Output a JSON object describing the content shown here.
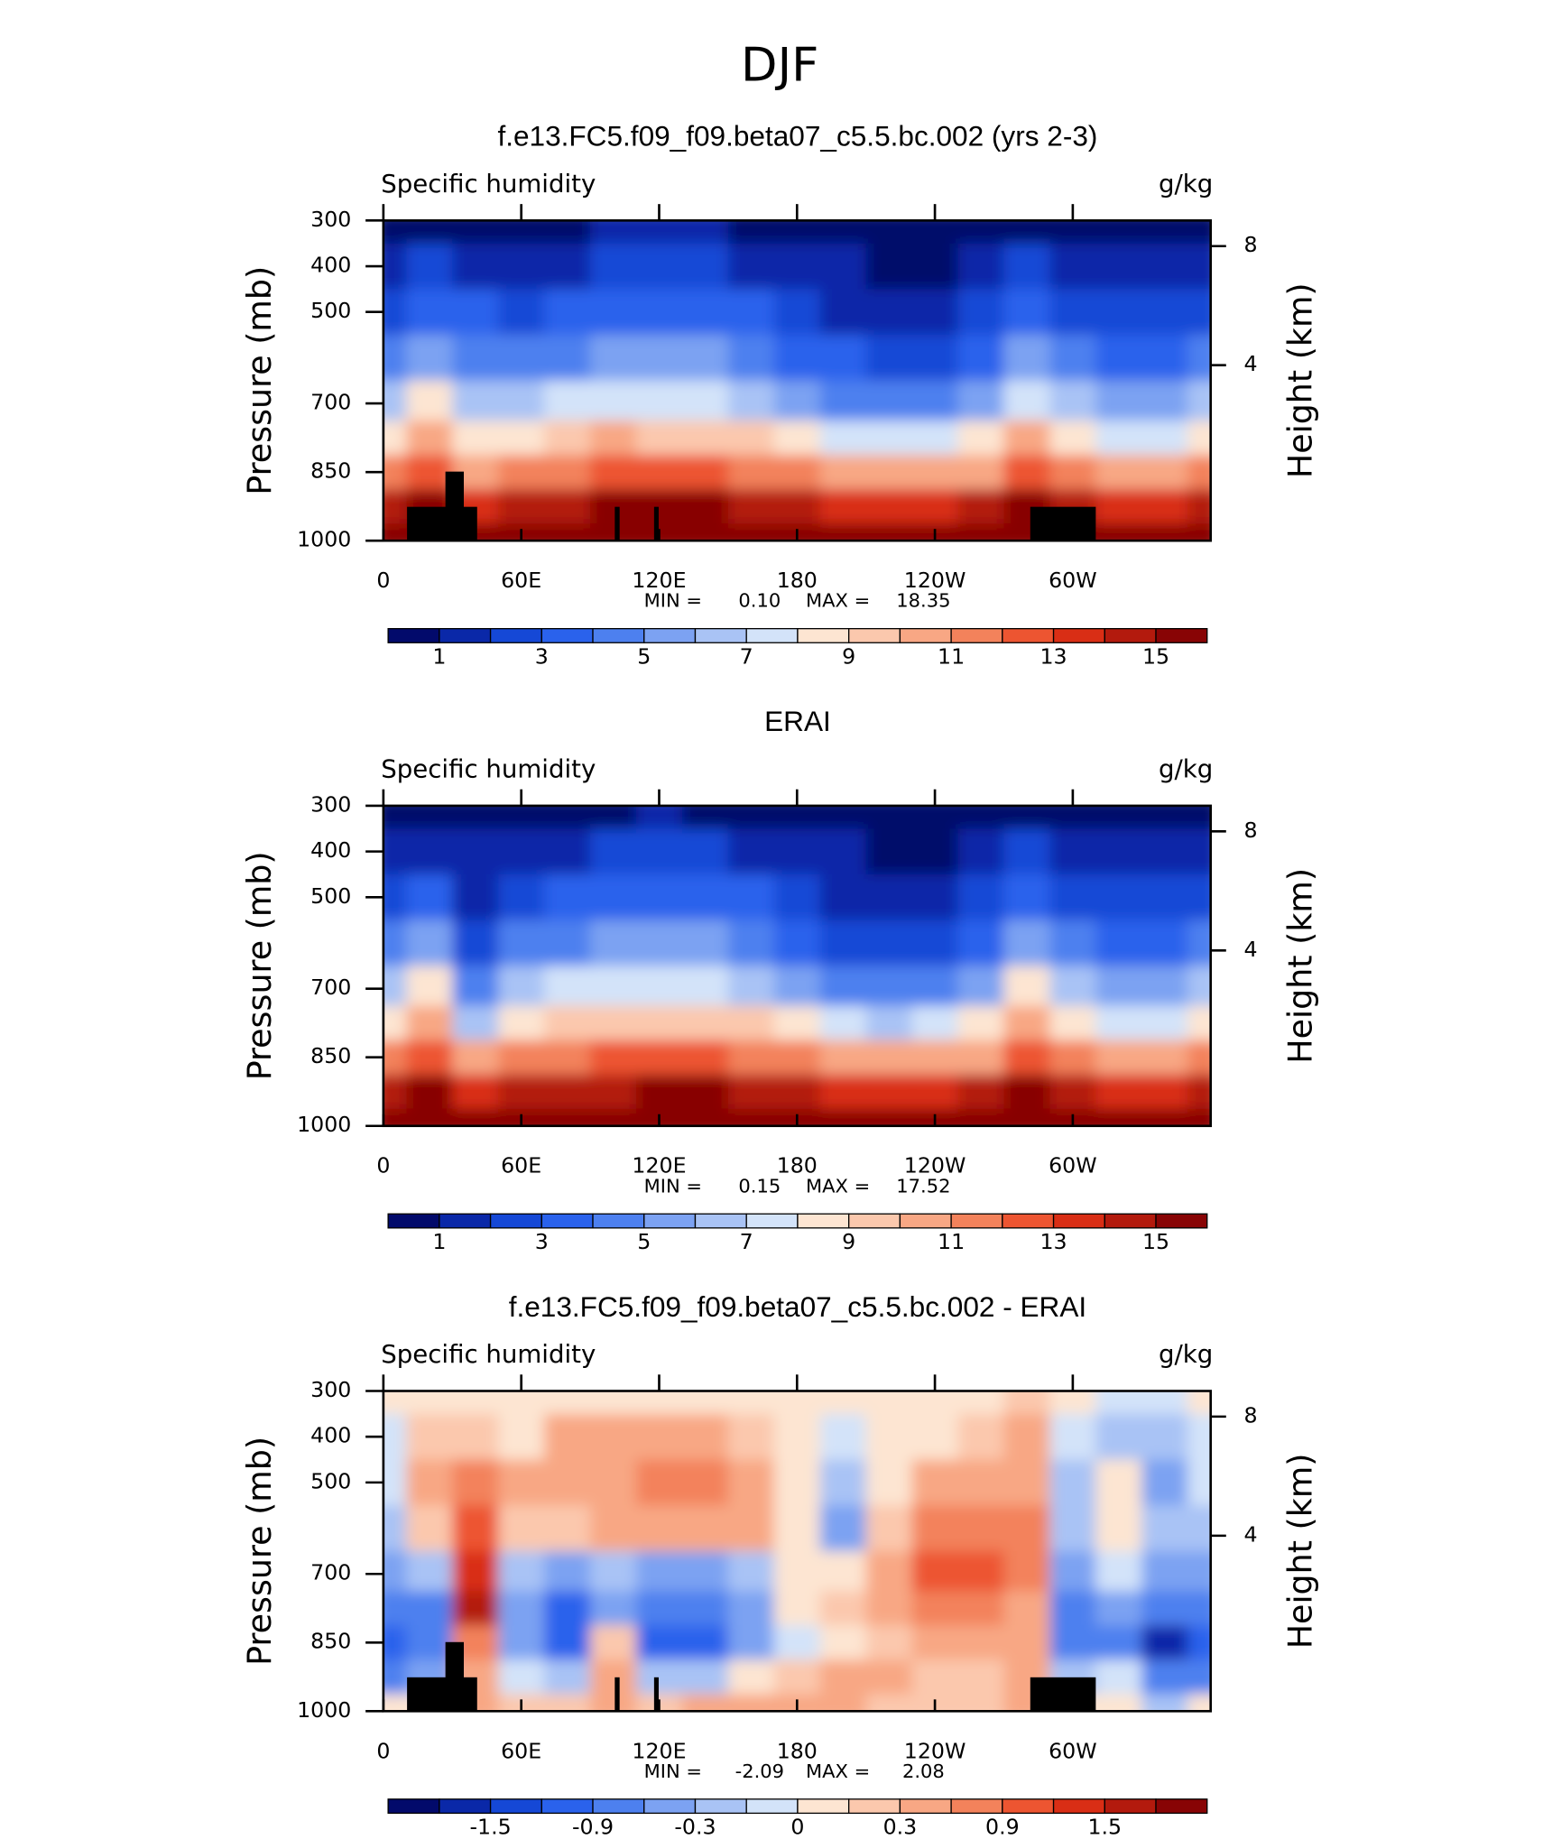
{
  "figure_title": "DJF",
  "chart_data": [
    {
      "type": "contour",
      "title": "f.e13.FC5.f09_f09.beta07_c5.5.bc.002 (yrs 2-3)",
      "subtitle": "Specific humidity",
      "units": "g/kg",
      "ylabel": "Pressure (mb)",
      "y2label": "Height (km)",
      "xlim": [
        0,
        360
      ],
      "xticks": [
        0,
        {
          "value": 60,
          "label": "60E"
        },
        {
          "value": 120,
          "label": "120E"
        },
        180,
        {
          "value": 240,
          "label": "120W"
        },
        {
          "value": 300,
          "label": "60W"
        }
      ],
      "ylim": [
        1000,
        300
      ],
      "yticks": [
        300,
        400,
        500,
        700,
        850,
        1000
      ],
      "y2ticks": [
        4,
        8
      ],
      "x": [
        0,
        20,
        40,
        60,
        80,
        100,
        120,
        140,
        160,
        180,
        200,
        220,
        240,
        260,
        280,
        300,
        320,
        340,
        360
      ],
      "y": [
        300,
        400,
        500,
        600,
        700,
        775,
        850,
        925,
        1000
      ],
      "z": [
        [
          0.6,
          0.8,
          0.7,
          0.8,
          0.9,
          1.0,
          1.1,
          1.0,
          0.9,
          0.7,
          0.5,
          0.4,
          0.4,
          0.5,
          0.9,
          0.6,
          0.5,
          0.5,
          0.6
        ],
        [
          1.5,
          2.2,
          1.8,
          1.6,
          1.9,
          2.1,
          2.2,
          2.1,
          1.9,
          1.5,
          1.1,
          0.9,
          0.9,
          1.2,
          2.2,
          1.5,
          1.1,
          1.1,
          1.5
        ],
        [
          2.6,
          3.5,
          3.0,
          2.9,
          3.2,
          3.4,
          3.5,
          3.4,
          3.1,
          2.5,
          1.9,
          1.6,
          1.6,
          2.1,
          3.5,
          2.7,
          2.1,
          2.1,
          2.6
        ],
        [
          4.0,
          5.0,
          4.5,
          4.5,
          4.8,
          5.0,
          5.1,
          5.0,
          4.6,
          3.8,
          3.0,
          2.7,
          2.8,
          3.4,
          5.0,
          4.2,
          3.5,
          3.4,
          4.0
        ],
        [
          6.0,
          8.0,
          6.5,
          6.6,
          7.0,
          7.4,
          7.4,
          7.2,
          6.8,
          5.8,
          4.6,
          4.2,
          4.5,
          5.4,
          7.8,
          6.3,
          5.5,
          5.3,
          6.0
        ],
        [
          8.3,
          10.0,
          8.5,
          8.7,
          9.2,
          10.0,
          9.8,
          9.5,
          9.0,
          8.2,
          7.2,
          7.0,
          7.3,
          8.0,
          10.2,
          8.5,
          7.8,
          7.6,
          8.3
        ],
        [
          11.0,
          12.5,
          10.5,
          11.2,
          11.8,
          12.5,
          12.5,
          12.2,
          11.8,
          11.0,
          10.2,
          10.0,
          10.2,
          10.8,
          12.5,
          11.4,
          10.6,
          10.5,
          11.0
        ],
        [
          14.0,
          15.0,
          13.5,
          14.0,
          14.3,
          15.0,
          15.0,
          15.0,
          14.8,
          14.2,
          13.6,
          13.4,
          13.5,
          14.0,
          15.0,
          14.2,
          13.5,
          13.4,
          14.0
        ],
        [
          16.0,
          16.0,
          16.0,
          16.2,
          16.5,
          16.8,
          17.0,
          17.2,
          17.0,
          16.7,
          16.3,
          16.0,
          16.0,
          16.2,
          16.5,
          16.3,
          16.0,
          15.8,
          16.0
        ]
      ],
      "levels": [
        1,
        2,
        3,
        4,
        5,
        6,
        7,
        8,
        9,
        10,
        11,
        12,
        13,
        14,
        15
      ],
      "colors": [
        "#020a6b",
        "#0a28a8",
        "#1548d6",
        "#2a62ec",
        "#4d80ef",
        "#7ca2f2",
        "#a9c3f5",
        "#d3e3f9",
        "#fde5d2",
        "#fbc8ad",
        "#f8a784",
        "#f3825b",
        "#ed5531",
        "#d92e15",
        "#b31a0d",
        "#880405"
      ],
      "colorbar_ticks": [
        1,
        3,
        5,
        7,
        9,
        11,
        13,
        15
      ],
      "stats": [
        "MIN =",
        "0.10",
        "MAX =",
        "18.35"
      ],
      "topography_mask": true
    },
    {
      "type": "contour",
      "title": "ERAI",
      "subtitle": "Specific humidity",
      "units": "g/kg",
      "ylabel": "Pressure (mb)",
      "y2label": "Height (km)",
      "xlim": [
        0,
        360
      ],
      "xticks": [
        0,
        {
          "value": 60,
          "label": "60E"
        },
        {
          "value": 120,
          "label": "120E"
        },
        180,
        {
          "value": 240,
          "label": "120W"
        },
        {
          "value": 300,
          "label": "60W"
        }
      ],
      "ylim": [
        1000,
        300
      ],
      "yticks": [
        300,
        400,
        500,
        700,
        850,
        1000
      ],
      "y2ticks": [
        4,
        8
      ],
      "x": [
        0,
        20,
        40,
        60,
        80,
        100,
        120,
        140,
        160,
        180,
        200,
        220,
        240,
        260,
        280,
        300,
        320,
        340,
        360
      ],
      "y": [
        300,
        400,
        500,
        600,
        700,
        775,
        850,
        925,
        1000
      ],
      "z": [
        [
          0.5,
          0.6,
          0.4,
          0.6,
          0.8,
          0.9,
          1.0,
          0.9,
          0.8,
          0.5,
          0.4,
          0.3,
          0.3,
          0.4,
          0.8,
          0.5,
          0.4,
          0.4,
          0.5
        ],
        [
          1.4,
          1.8,
          1.0,
          1.5,
          1.9,
          2.1,
          2.2,
          2.1,
          1.8,
          1.4,
          1.0,
          0.8,
          0.8,
          1.2,
          2.1,
          1.4,
          1.0,
          1.0,
          1.4
        ],
        [
          2.5,
          3.2,
          1.8,
          2.8,
          3.2,
          3.5,
          3.6,
          3.5,
          3.1,
          2.4,
          1.8,
          1.5,
          1.5,
          2.0,
          3.5,
          2.6,
          2.0,
          2.0,
          2.5
        ],
        [
          4.0,
          5.0,
          2.6,
          4.2,
          4.8,
          5.1,
          5.2,
          5.1,
          4.6,
          3.6,
          2.8,
          2.5,
          2.6,
          3.3,
          5.0,
          4.0,
          3.3,
          3.3,
          4.0
        ],
        [
          6.2,
          8.2,
          4.0,
          6.2,
          7.0,
          7.4,
          7.5,
          7.3,
          6.8,
          5.5,
          4.4,
          4.0,
          4.3,
          5.2,
          8.0,
          6.2,
          5.4,
          5.3,
          6.2
        ],
        [
          8.5,
          10.5,
          6.5,
          8.5,
          9.3,
          9.8,
          9.8,
          9.6,
          9.1,
          8.2,
          7.2,
          6.9,
          7.2,
          8.0,
          10.5,
          8.6,
          7.9,
          7.7,
          8.5
        ],
        [
          11.2,
          12.8,
          10.0,
          11.2,
          11.8,
          12.3,
          12.4,
          12.2,
          11.8,
          11.0,
          10.2,
          10.0,
          10.2,
          10.8,
          12.8,
          11.4,
          10.8,
          10.6,
          11.2
        ],
        [
          14.0,
          15.5,
          13.0,
          14.0,
          14.3,
          14.8,
          15.0,
          15.0,
          14.8,
          14.2,
          13.6,
          13.3,
          13.5,
          14.0,
          15.5,
          14.3,
          13.6,
          13.4,
          14.0
        ],
        [
          16.0,
          16.5,
          15.5,
          16.0,
          16.4,
          16.8,
          17.0,
          17.2,
          17.0,
          16.7,
          16.3,
          16.0,
          16.0,
          16.2,
          16.8,
          16.4,
          16.0,
          15.8,
          16.0
        ]
      ],
      "levels": [
        1,
        2,
        3,
        4,
        5,
        6,
        7,
        8,
        9,
        10,
        11,
        12,
        13,
        14,
        15
      ],
      "colors": [
        "#020a6b",
        "#0a28a8",
        "#1548d6",
        "#2a62ec",
        "#4d80ef",
        "#7ca2f2",
        "#a9c3f5",
        "#d3e3f9",
        "#fde5d2",
        "#fbc8ad",
        "#f8a784",
        "#f3825b",
        "#ed5531",
        "#d92e15",
        "#b31a0d",
        "#880405"
      ],
      "colorbar_ticks": [
        1,
        3,
        5,
        7,
        9,
        11,
        13,
        15
      ],
      "stats": [
        "MIN =",
        "0.15",
        "MAX =",
        "17.52"
      ],
      "topography_mask": false
    },
    {
      "type": "contour",
      "title": "f.e13.FC5.f09_f09.beta07_c5.5.bc.002 - ERAI",
      "subtitle": "Specific humidity",
      "units": "g/kg",
      "ylabel": "Pressure (mb)",
      "y2label": "Height (km)",
      "xlim": [
        0,
        360
      ],
      "xticks": [
        0,
        {
          "value": 60,
          "label": "60E"
        },
        {
          "value": 120,
          "label": "120E"
        },
        180,
        {
          "value": 240,
          "label": "120W"
        },
        {
          "value": 300,
          "label": "60W"
        }
      ],
      "ylim": [
        1000,
        300
      ],
      "yticks": [
        300,
        400,
        500,
        700,
        850,
        1000
      ],
      "y2ticks": [
        4,
        8
      ],
      "x": [
        0,
        20,
        40,
        60,
        80,
        100,
        120,
        140,
        160,
        180,
        200,
        220,
        240,
        260,
        280,
        300,
        320,
        340,
        360
      ],
      "y": [
        300,
        400,
        500,
        600,
        700,
        775,
        850,
        925,
        1000
      ],
      "z": [
        [
          0,
          0.1,
          0.1,
          0.1,
          0.1,
          0.1,
          0.1,
          0.1,
          0.1,
          0,
          0,
          0,
          0,
          0.1,
          0.2,
          0,
          -0.1,
          -0.1,
          0
        ],
        [
          -0.1,
          0.2,
          0.2,
          0.1,
          0.3,
          0.3,
          0.3,
          0.3,
          0.2,
          0,
          -0.1,
          0,
          0.1,
          0.2,
          0.4,
          -0.1,
          -0.2,
          -0.2,
          -0.1
        ],
        [
          -0.1,
          0.3,
          0.6,
          0.3,
          0.3,
          0.4,
          0.6,
          0.7,
          0.5,
          0,
          -0.3,
          0,
          0.3,
          0.5,
          0.5,
          -0.2,
          0,
          -0.4,
          -0.1
        ],
        [
          -0.2,
          0.2,
          0.9,
          0.2,
          0.2,
          0.3,
          0.4,
          0.5,
          0.3,
          0,
          -0.4,
          0.2,
          0.6,
          0.7,
          0.6,
          -0.3,
          0,
          -0.3,
          -0.2
        ],
        [
          -0.5,
          -0.2,
          1.3,
          -0.3,
          -0.6,
          -0.3,
          -0.5,
          -0.5,
          -0.3,
          0.1,
          0,
          0.5,
          0.9,
          1.0,
          0.7,
          -0.5,
          -0.1,
          -0.5,
          -0.5
        ],
        [
          -0.9,
          -0.7,
          1.6,
          -0.6,
          -1.0,
          -0.5,
          -0.9,
          -0.8,
          -0.5,
          0,
          0.2,
          0.5,
          0.7,
          0.6,
          0.5,
          -0.8,
          -0.6,
          -0.9,
          -0.9
        ],
        [
          -1.2,
          -0.9,
          0.7,
          -0.6,
          -1.0,
          0.2,
          -1.1,
          -1.0,
          -0.6,
          -0.1,
          0.1,
          0.2,
          0.3,
          0.3,
          0.4,
          -0.8,
          -0.8,
          -1.6,
          -1.2
        ],
        [
          -0.8,
          -0.4,
          0.3,
          -0.1,
          -0.3,
          0.4,
          -0.3,
          -0.2,
          0,
          0.2,
          0.3,
          0.3,
          0.2,
          0.2,
          0.3,
          -0.3,
          -0.1,
          -0.9,
          -0.8
        ],
        [
          0,
          0,
          0.3,
          0.2,
          0.2,
          0.3,
          0.2,
          0.3,
          0.4,
          0.3,
          0.3,
          0.2,
          0.2,
          0.2,
          0.3,
          0,
          0.1,
          -0.3,
          0
        ]
      ],
      "levels": [
        -1.8,
        -1.5,
        -1.2,
        -0.9,
        -0.6,
        -0.3,
        -0.15,
        0,
        0.15,
        0.3,
        0.6,
        0.9,
        1.2,
        1.5,
        1.8
      ],
      "colors": [
        "#020a6b",
        "#0a28a8",
        "#1548d6",
        "#2a62ec",
        "#4d80ef",
        "#7ca2f2",
        "#a9c3f5",
        "#d3e3f9",
        "#fde5d2",
        "#fbc8ad",
        "#f8a784",
        "#f3825b",
        "#ed5531",
        "#d92e15",
        "#b31a0d",
        "#880405"
      ],
      "colorbar_ticks": [
        -1.5,
        -0.9,
        -0.3,
        0,
        0.3,
        0.9,
        1.5
      ],
      "stats": [
        "MIN =",
        "-2.09",
        "MAX =",
        "2.08"
      ],
      "topography_mask": true
    }
  ]
}
